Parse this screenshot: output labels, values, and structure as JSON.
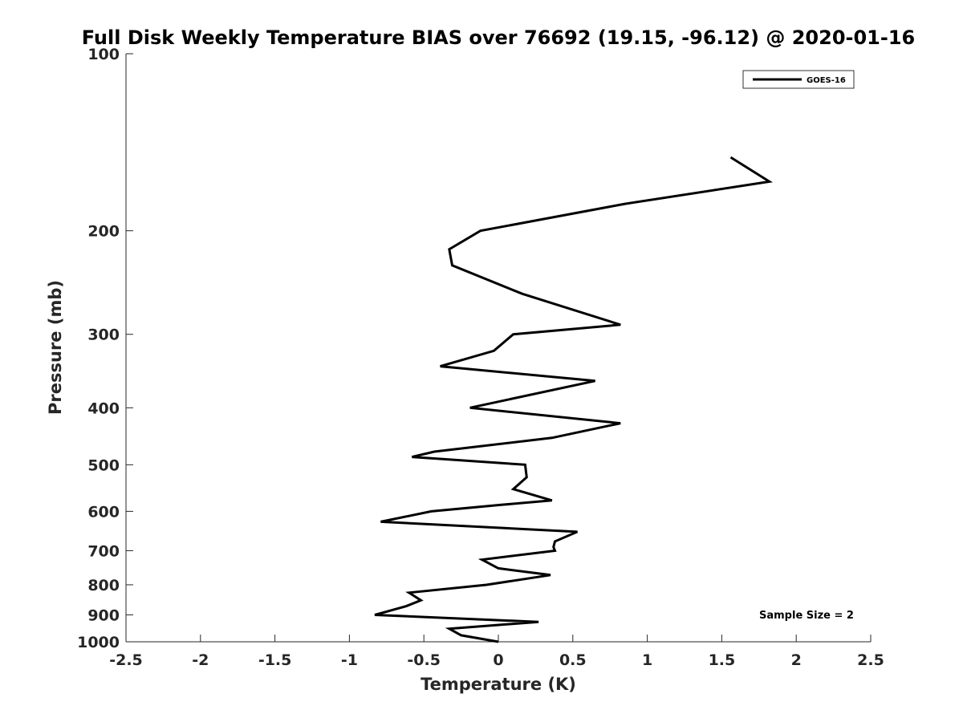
{
  "chart_data": {
    "type": "line",
    "title": "Full Disk Weekly Temperature BIAS over 76692 (19.15, -96.12) @ 2020-01-16",
    "xlabel": "Temperature (K)",
    "ylabel": "Pressure (mb)",
    "xlim": [
      -2.5,
      2.5
    ],
    "ylim": [
      100,
      1000
    ],
    "y_scale": "log",
    "y_reversed": true,
    "x_ticks": [
      "-2.5",
      "-2",
      "-1.5",
      "-1",
      "-0.5",
      "0",
      "0.5",
      "1",
      "1.5",
      "2",
      "2.5"
    ],
    "y_ticks": [
      "100",
      "200",
      "300",
      "400",
      "500",
      "600",
      "700",
      "800",
      "900",
      "1000"
    ],
    "grid": false,
    "legend_position": "top-right",
    "annotation": "Sample Size = 2",
    "series": [
      {
        "name": "GOES-16",
        "color": "#000000",
        "points": [
          {
            "x": 1.56,
            "p": 150
          },
          {
            "x": 1.82,
            "p": 165
          },
          {
            "x": 0.85,
            "p": 180
          },
          {
            "x": -0.12,
            "p": 200
          },
          {
            "x": -0.33,
            "p": 215
          },
          {
            "x": -0.31,
            "p": 229
          },
          {
            "x": 0.16,
            "p": 256
          },
          {
            "x": 0.82,
            "p": 289
          },
          {
            "x": 0.1,
            "p": 300
          },
          {
            "x": -0.03,
            "p": 320
          },
          {
            "x": -0.39,
            "p": 340
          },
          {
            "x": 0.65,
            "p": 360
          },
          {
            "x": -0.19,
            "p": 400
          },
          {
            "x": 0.82,
            "p": 425
          },
          {
            "x": 0.36,
            "p": 450
          },
          {
            "x": -0.43,
            "p": 475
          },
          {
            "x": -0.58,
            "p": 485
          },
          {
            "x": 0.18,
            "p": 500
          },
          {
            "x": 0.19,
            "p": 525
          },
          {
            "x": 0.1,
            "p": 550
          },
          {
            "x": 0.36,
            "p": 575
          },
          {
            "x": 0.02,
            "p": 585
          },
          {
            "x": -0.45,
            "p": 600
          },
          {
            "x": -0.79,
            "p": 625
          },
          {
            "x": 0.53,
            "p": 650
          },
          {
            "x": 0.38,
            "p": 675
          },
          {
            "x": 0.37,
            "p": 690
          },
          {
            "x": 0.38,
            "p": 700
          },
          {
            "x": -0.11,
            "p": 725
          },
          {
            "x": 0.0,
            "p": 750
          },
          {
            "x": 0.35,
            "p": 770
          },
          {
            "x": -0.08,
            "p": 800
          },
          {
            "x": -0.6,
            "p": 825
          },
          {
            "x": -0.52,
            "p": 850
          },
          {
            "x": -0.62,
            "p": 870
          },
          {
            "x": -0.83,
            "p": 900
          },
          {
            "x": 0.27,
            "p": 925
          },
          {
            "x": -0.33,
            "p": 950
          },
          {
            "x": -0.25,
            "p": 975
          },
          {
            "x": 0.0,
            "p": 1000
          }
        ]
      }
    ]
  }
}
